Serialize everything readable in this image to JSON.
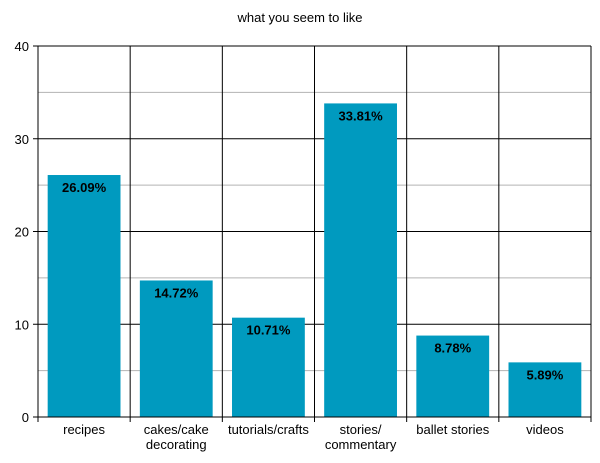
{
  "chart_data": {
    "type": "bar",
    "title": "what you seem to like",
    "categories": [
      [
        "recipes"
      ],
      [
        "cakes/cake",
        "decorating"
      ],
      [
        "tutorials/crafts"
      ],
      [
        "stories/",
        "commentary"
      ],
      [
        "ballet stories"
      ],
      [
        "videos"
      ]
    ],
    "values": [
      26.09,
      14.72,
      10.71,
      33.81,
      8.78,
      5.89
    ],
    "data_labels": [
      "26.09%",
      "14.72%",
      "10.71%",
      "33.81%",
      "8.78%",
      "5.89%"
    ],
    "xlabel": "",
    "ylabel": "",
    "ylim": [
      0,
      40
    ],
    "yticks": [
      0,
      10,
      20,
      30,
      40
    ],
    "grid": true,
    "bar_color": "#009ABF"
  }
}
